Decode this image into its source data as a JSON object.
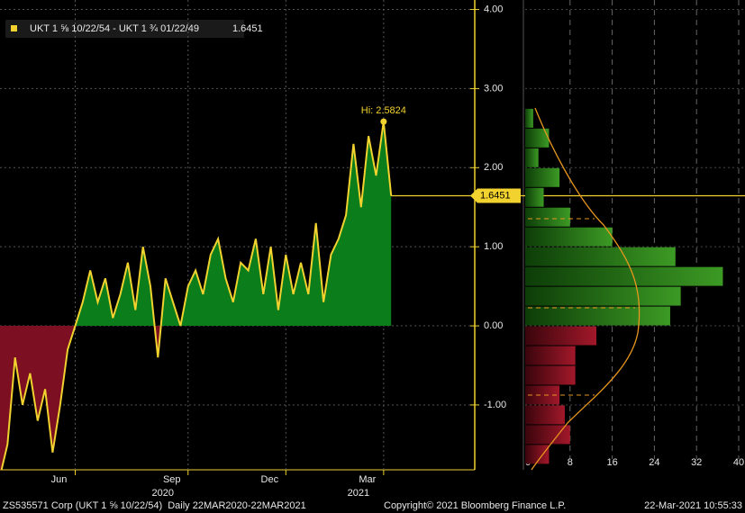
{
  "header": {
    "series_name": "UKT 1 ⅝ 10/22/54 - UKT 1 ¾ 01/22/49"
  },
  "chart_data": [
    {
      "type": "line",
      "categories": [
        null,
        null,
        null,
        null,
        null,
        null,
        null,
        null,
        null,
        null,
        "Jun",
        null,
        null,
        null,
        null,
        null,
        null,
        null,
        null,
        null,
        null,
        null,
        null,
        null,
        null,
        "Sep",
        null,
        null,
        null,
        null,
        null,
        null,
        null,
        null,
        null,
        null,
        null,
        null,
        "Dec",
        null,
        null,
        null,
        null,
        null,
        null,
        null,
        null,
        null,
        null,
        null,
        null,
        "Mar",
        null
      ],
      "values": [
        -1.9,
        -1.5,
        -0.4,
        -1.0,
        -0.6,
        -1.2,
        -0.8,
        -1.6,
        -1.0,
        -0.3,
        0.0,
        0.3,
        0.7,
        0.3,
        0.6,
        0.1,
        0.4,
        0.8,
        0.2,
        1.0,
        0.5,
        -0.4,
        0.6,
        0.3,
        0.0,
        0.5,
        0.7,
        0.4,
        0.9,
        1.1,
        0.6,
        0.3,
        0.8,
        0.7,
        1.1,
        0.4,
        1.0,
        0.2,
        0.9,
        0.4,
        0.8,
        0.4,
        1.3,
        0.3,
        0.9,
        1.1,
        1.4,
        2.3,
        1.5,
        2.4,
        1.9,
        2.5824,
        1.6451
      ],
      "color": "#f2d22e",
      "fill_positive": "#0b7d1b",
      "fill_negative": "#7c0f22",
      "ylim": [
        -1.82,
        4.12
      ],
      "yticks": [
        {
          "value": -1,
          "label": "-1.00"
        },
        {
          "value": 0,
          "label": "0.00"
        },
        {
          "value": 1,
          "label": "1.00"
        },
        {
          "value": 2,
          "label": "2.00"
        },
        {
          "value": 3,
          "label": "3.00"
        },
        {
          "value": 4,
          "label": "4.00"
        }
      ],
      "grid": true,
      "hi_label": "Hi:",
      "years": [
        "2020",
        "2021"
      ]
    },
    {
      "type": "histogram",
      "orientation": "horizontal",
      "bins": [
        -1.75,
        -1.5,
        -1.25,
        -1.0,
        -0.75,
        -0.5,
        -0.25,
        0.0,
        0.25,
        0.5,
        0.75,
        1.0,
        1.25,
        1.5,
        1.75,
        2.0,
        2.25,
        2.5,
        2.75
      ],
      "counts": [
        4,
        8,
        7,
        6,
        9,
        9,
        13,
        27,
        29,
        37,
        28,
        16,
        8,
        3,
        6,
        2,
        4,
        1
      ],
      "color_positive": "#2f8a1c",
      "color_negative": "#8e1420",
      "xlim": [
        0,
        40
      ],
      "xticks": [
        0,
        8,
        16,
        24,
        32,
        40
      ],
      "grid": true
    }
  ],
  "footer": {
    "left": "ZS535571 Corp (UKT 1 ⅝ 10/22/54)  Daily 22MAR2020-22MAR2021",
    "center": "Copyright© 2021 Bloomberg Finance L.P.",
    "right": "22-Mar-2021 10:55:33"
  }
}
